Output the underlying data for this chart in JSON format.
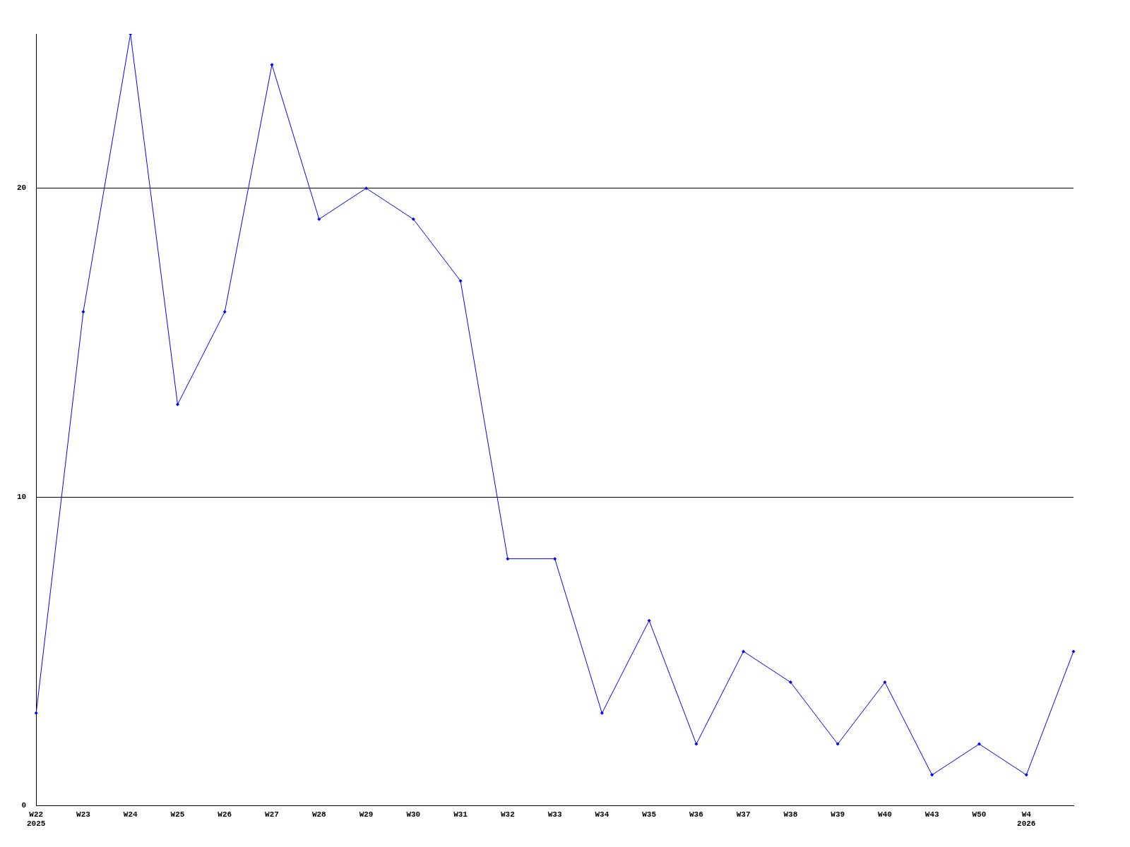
{
  "chart_data": {
    "type": "line",
    "categories": [
      "W22\n2025",
      "W23",
      "W24",
      "W25",
      "W26",
      "W27",
      "W28",
      "W29",
      "W30",
      "W31",
      "W32",
      "W33",
      "W34",
      "W35",
      "W36",
      "W37",
      "W38",
      "W39",
      "W40",
      "W43",
      "W50",
      "W4\n2026",
      null
    ],
    "values": [
      3,
      16,
      25,
      13,
      16,
      24,
      19,
      20,
      19,
      17,
      8,
      8,
      3,
      6,
      2,
      5,
      4,
      2,
      4,
      1,
      2,
      1,
      5
    ],
    "color": "#0000ff",
    "ylim": [
      0,
      25
    ],
    "yticks": [
      0,
      10,
      20
    ],
    "grid": "y",
    "marker": "diamond",
    "legend": false
  }
}
